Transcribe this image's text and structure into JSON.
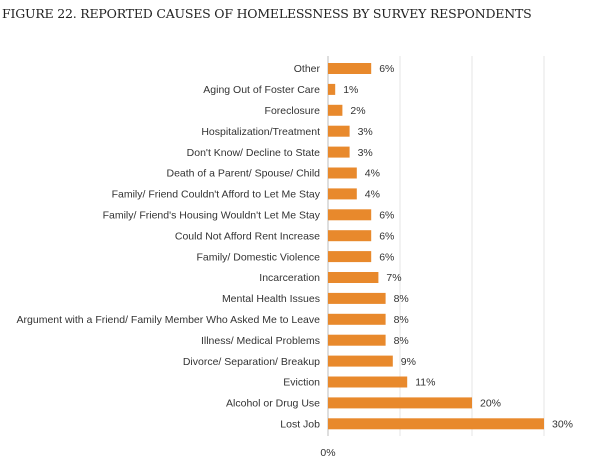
{
  "page": {
    "title": "FIGURE 22. REPORTED CAUSES OF HOMELESSNESS BY SURVEY RESPONDENTS"
  },
  "chart_data": {
    "type": "bar",
    "orientation": "horizontal",
    "title": "FIGURE 22. REPORTED CAUSES OF HOMELESSNESS BY SURVEY RESPONDENTS",
    "categories": [
      "Other",
      "Aging Out of Foster Care",
      "Foreclosure",
      "Hospitalization/Treatment",
      "Don't Know/ Decline to State",
      "Death of a Parent/ Spouse/ Child",
      "Family/ Friend Couldn't Afford to Let Me Stay",
      "Family/ Friend's Housing Wouldn't Let Me Stay",
      "Could Not Afford Rent Increase",
      "Family/ Domestic Violence",
      "Incarceration",
      "Mental Health Issues",
      "Argument with a Friend/ Family Member Who Asked Me to Leave",
      "Illness/ Medical Problems",
      "Divorce/ Separation/ Breakup",
      "Eviction",
      "Alcohol or Drug Use",
      "Lost Job"
    ],
    "values": [
      6,
      1,
      2,
      3,
      3,
      4,
      4,
      6,
      6,
      6,
      7,
      8,
      8,
      8,
      9,
      11,
      20,
      30
    ],
    "value_labels": [
      "6%",
      "1%",
      "2%",
      "3%",
      "3%",
      "4%",
      "4%",
      "6%",
      "6%",
      "6%",
      "7%",
      "8%",
      "8%",
      "8%",
      "9%",
      "11%",
      "20%",
      "30%"
    ],
    "xlim": [
      0,
      40
    ],
    "x_tick_labels": [
      "0%"
    ],
    "grid": true,
    "bar_color": "#e8892c"
  }
}
